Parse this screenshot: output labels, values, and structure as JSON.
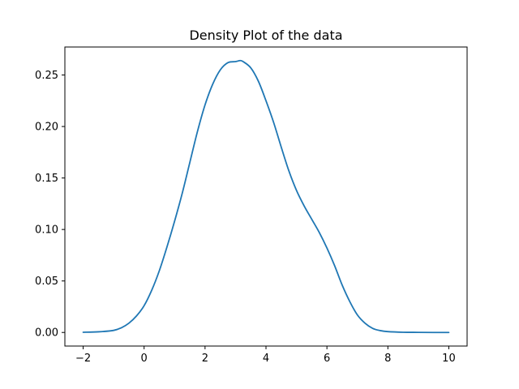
{
  "chart_data": {
    "type": "line",
    "title": "Density Plot of the data",
    "xlabel": "",
    "ylabel": "",
    "xlim": [
      -2.6,
      10.6
    ],
    "ylim": [
      -0.0132,
      0.2772
    ],
    "xticks": [
      -2,
      0,
      2,
      4,
      6,
      8,
      10
    ],
    "yticks": [
      0.0,
      0.05,
      0.1,
      0.15,
      0.2,
      0.25
    ],
    "xtick_labels": [
      "−2",
      "0",
      "2",
      "4",
      "6",
      "8",
      "10"
    ],
    "ytick_labels": [
      "0.00",
      "0.05",
      "0.10",
      "0.15",
      "0.20",
      "0.25"
    ],
    "grid": false,
    "series": [
      {
        "color": "#1f77b4",
        "x": [
          -2.0,
          -1.5,
          -1.0,
          -0.75,
          -0.5,
          -0.25,
          0.0,
          0.25,
          0.5,
          0.75,
          1.0,
          1.25,
          1.5,
          1.75,
          2.0,
          2.25,
          2.5,
          2.75,
          3.0,
          3.15,
          3.25,
          3.5,
          3.75,
          4.0,
          4.25,
          4.5,
          4.75,
          5.0,
          5.25,
          5.5,
          5.75,
          6.0,
          6.25,
          6.5,
          6.75,
          7.0,
          7.25,
          7.5,
          7.75,
          8.0,
          8.5,
          9.0,
          9.5,
          10.0
        ],
        "y": [
          0.0002,
          0.0006,
          0.002,
          0.0045,
          0.009,
          0.016,
          0.026,
          0.041,
          0.06,
          0.083,
          0.108,
          0.135,
          0.165,
          0.195,
          0.221,
          0.241,
          0.255,
          0.262,
          0.263,
          0.264,
          0.263,
          0.257,
          0.244,
          0.225,
          0.204,
          0.18,
          0.157,
          0.138,
          0.123,
          0.11,
          0.097,
          0.082,
          0.065,
          0.046,
          0.03,
          0.017,
          0.009,
          0.004,
          0.0018,
          0.0008,
          0.0002,
          0.0001,
          0.0,
          0.0
        ]
      }
    ]
  }
}
